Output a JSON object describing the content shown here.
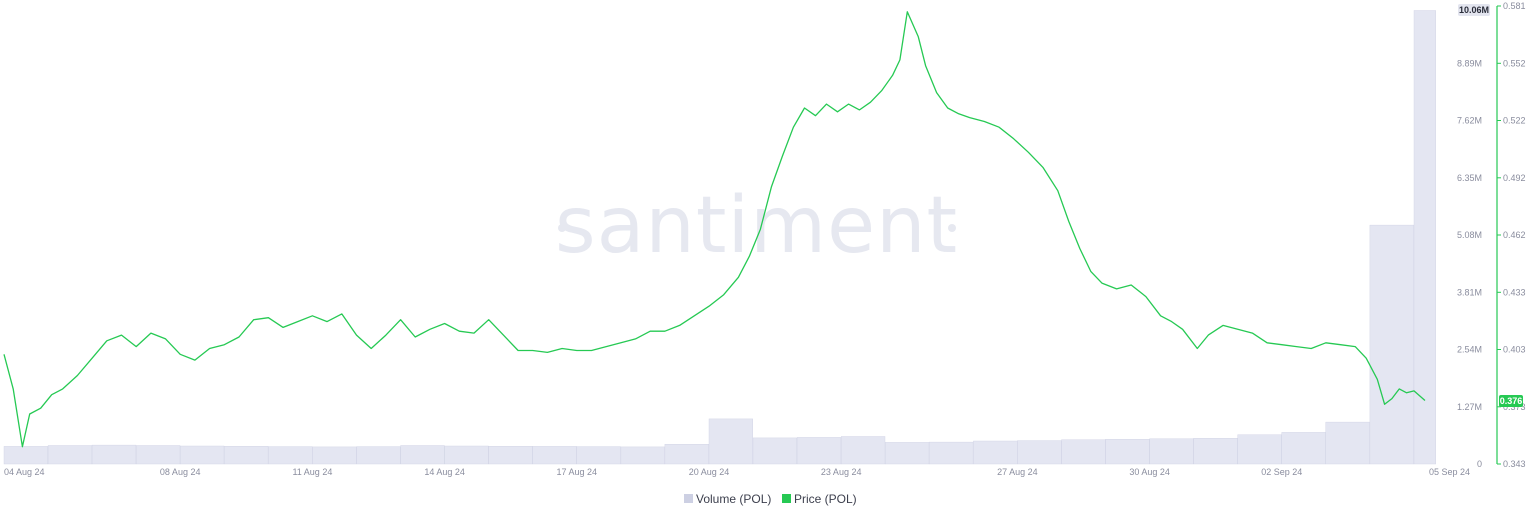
{
  "watermark": "santiment",
  "colors": {
    "price": "#26c953",
    "volume_fill": "#e4e6f2",
    "volume_stroke": "#cdd0e3",
    "axis_text": "#8a8d9e",
    "badge_price_bg": "#26c953",
    "badge_volume_bg": "#e3e5ef"
  },
  "chart_data": {
    "type": "line",
    "x_ticks": [
      "04 Aug 24",
      "08 Aug 24",
      "11 Aug 24",
      "14 Aug 24",
      "17 Aug 24",
      "20 Aug 24",
      "23 Aug 24",
      "27 Aug 24",
      "30 Aug 24",
      "02 Sep 24",
      "05 Sep 24"
    ],
    "x_range": [
      "2024-08-04",
      "2024-09-05"
    ],
    "y_left_ticks": [
      "0",
      "1.27M",
      "2.54M",
      "3.81M",
      "5.08M",
      "6.35M",
      "7.62M",
      "8.89M",
      "10.06M"
    ],
    "y_left_range": [
      0,
      10160000
    ],
    "y_right_ticks": [
      "0.343",
      "0.373",
      "0.403",
      "0.433",
      "0.462",
      "0.492",
      "0.522",
      "0.552",
      "0.581"
    ],
    "y_right_range": [
      0.343,
      0.581
    ],
    "legend": [
      "Volume (POL)",
      "Price (POL)"
    ],
    "legend_position": "bottom-center",
    "grid": false,
    "last_volume_label": "10.06M",
    "last_price_label": "0.376",
    "series": [
      {
        "name": "Volume (POL)",
        "type": "bar",
        "axis": "left",
        "points": [
          [
            "2024-08-04",
            390000
          ],
          [
            "2024-08-05",
            410000
          ],
          [
            "2024-08-06",
            420000
          ],
          [
            "2024-08-07",
            410000
          ],
          [
            "2024-08-08",
            400000
          ],
          [
            "2024-08-09",
            395000
          ],
          [
            "2024-08-10",
            385000
          ],
          [
            "2024-08-11",
            380000
          ],
          [
            "2024-08-12",
            385000
          ],
          [
            "2024-08-13",
            410000
          ],
          [
            "2024-08-14",
            400000
          ],
          [
            "2024-08-15",
            395000
          ],
          [
            "2024-08-16",
            390000
          ],
          [
            "2024-08-17",
            385000
          ],
          [
            "2024-08-18",
            380000
          ],
          [
            "2024-08-19",
            440000
          ],
          [
            "2024-08-20",
            1000000
          ],
          [
            "2024-08-21",
            580000
          ],
          [
            "2024-08-22",
            590000
          ],
          [
            "2024-08-23",
            610000
          ],
          [
            "2024-08-24",
            480000
          ],
          [
            "2024-08-25",
            485000
          ],
          [
            "2024-08-26",
            510000
          ],
          [
            "2024-08-27",
            520000
          ],
          [
            "2024-08-28",
            540000
          ],
          [
            "2024-08-29",
            550000
          ],
          [
            "2024-08-30",
            560000
          ],
          [
            "2024-08-31",
            570000
          ],
          [
            "2024-09-01",
            650000
          ],
          [
            "2024-09-02",
            700000
          ],
          [
            "2024-09-03",
            930000
          ],
          [
            "2024-09-04",
            5300000
          ],
          [
            "2024-09-05",
            10060000
          ]
        ]
      },
      {
        "name": "Price (POL)",
        "type": "line",
        "axis": "right",
        "points": [
          [
            "2024-08-04T00:00",
            0.4
          ],
          [
            "2024-08-04T05:00",
            0.382
          ],
          [
            "2024-08-04T10:00",
            0.352
          ],
          [
            "2024-08-04T14:00",
            0.369
          ],
          [
            "2024-08-04T20:00",
            0.372
          ],
          [
            "2024-08-05T02:00",
            0.379
          ],
          [
            "2024-08-05T08:00",
            0.382
          ],
          [
            "2024-08-05T16:00",
            0.389
          ],
          [
            "2024-08-06T00:00",
            0.398
          ],
          [
            "2024-08-06T08:00",
            0.407
          ],
          [
            "2024-08-06T16:00",
            0.41
          ],
          [
            "2024-08-07T00:00",
            0.404
          ],
          [
            "2024-08-07T08:00",
            0.411
          ],
          [
            "2024-08-07T16:00",
            0.408
          ],
          [
            "2024-08-08T00:00",
            0.4
          ],
          [
            "2024-08-08T08:00",
            0.397
          ],
          [
            "2024-08-08T16:00",
            0.403
          ],
          [
            "2024-08-09T00:00",
            0.405
          ],
          [
            "2024-08-09T08:00",
            0.409
          ],
          [
            "2024-08-09T16:00",
            0.418
          ],
          [
            "2024-08-10T00:00",
            0.419
          ],
          [
            "2024-08-10T08:00",
            0.414
          ],
          [
            "2024-08-10T16:00",
            0.417
          ],
          [
            "2024-08-11T00:00",
            0.42
          ],
          [
            "2024-08-11T08:00",
            0.417
          ],
          [
            "2024-08-11T16:00",
            0.421
          ],
          [
            "2024-08-12T00:00",
            0.41
          ],
          [
            "2024-08-12T08:00",
            0.403
          ],
          [
            "2024-08-12T16:00",
            0.41
          ],
          [
            "2024-08-13T00:00",
            0.418
          ],
          [
            "2024-08-13T08:00",
            0.409
          ],
          [
            "2024-08-13T16:00",
            0.413
          ],
          [
            "2024-08-14T00:00",
            0.416
          ],
          [
            "2024-08-14T08:00",
            0.412
          ],
          [
            "2024-08-14T16:00",
            0.411
          ],
          [
            "2024-08-15T00:00",
            0.418
          ],
          [
            "2024-08-15T08:00",
            0.41
          ],
          [
            "2024-08-15T16:00",
            0.402
          ],
          [
            "2024-08-16T00:00",
            0.402
          ],
          [
            "2024-08-16T08:00",
            0.401
          ],
          [
            "2024-08-16T16:00",
            0.403
          ],
          [
            "2024-08-17T00:00",
            0.402
          ],
          [
            "2024-08-17T08:00",
            0.402
          ],
          [
            "2024-08-17T16:00",
            0.404
          ],
          [
            "2024-08-18T00:00",
            0.406
          ],
          [
            "2024-08-18T08:00",
            0.408
          ],
          [
            "2024-08-18T16:00",
            0.412
          ],
          [
            "2024-08-19T00:00",
            0.412
          ],
          [
            "2024-08-19T08:00",
            0.415
          ],
          [
            "2024-08-19T16:00",
            0.42
          ],
          [
            "2024-08-20T00:00",
            0.425
          ],
          [
            "2024-08-20T08:00",
            0.431
          ],
          [
            "2024-08-20T16:00",
            0.44
          ],
          [
            "2024-08-20T22:00",
            0.451
          ],
          [
            "2024-08-21T04:00",
            0.465
          ],
          [
            "2024-08-21T10:00",
            0.487
          ],
          [
            "2024-08-21T16:00",
            0.503
          ],
          [
            "2024-08-21T22:00",
            0.518
          ],
          [
            "2024-08-22T04:00",
            0.528
          ],
          [
            "2024-08-22T10:00",
            0.524
          ],
          [
            "2024-08-22T16:00",
            0.53
          ],
          [
            "2024-08-22T22:00",
            0.526
          ],
          [
            "2024-08-23T04:00",
            0.53
          ],
          [
            "2024-08-23T10:00",
            0.527
          ],
          [
            "2024-08-23T16:00",
            0.531
          ],
          [
            "2024-08-23T22:00",
            0.537
          ],
          [
            "2024-08-24T04:00",
            0.545
          ],
          [
            "2024-08-24T08:00",
            0.553
          ],
          [
            "2024-08-24T12:00",
            0.578
          ],
          [
            "2024-08-24T18:00",
            0.565
          ],
          [
            "2024-08-24T22:00",
            0.55
          ],
          [
            "2024-08-25T04:00",
            0.536
          ],
          [
            "2024-08-25T10:00",
            0.528
          ],
          [
            "2024-08-25T16:00",
            0.525
          ],
          [
            "2024-08-25T22:00",
            0.523
          ],
          [
            "2024-08-26T06:00",
            0.521
          ],
          [
            "2024-08-26T14:00",
            0.518
          ],
          [
            "2024-08-26T22:00",
            0.512
          ],
          [
            "2024-08-27T06:00",
            0.505
          ],
          [
            "2024-08-27T14:00",
            0.497
          ],
          [
            "2024-08-27T22:00",
            0.485
          ],
          [
            "2024-08-28T04:00",
            0.469
          ],
          [
            "2024-08-28T10:00",
            0.455
          ],
          [
            "2024-08-28T16:00",
            0.443
          ],
          [
            "2024-08-28T22:00",
            0.437
          ],
          [
            "2024-08-29T06:00",
            0.434
          ],
          [
            "2024-08-29T14:00",
            0.436
          ],
          [
            "2024-08-29T22:00",
            0.43
          ],
          [
            "2024-08-30T06:00",
            0.42
          ],
          [
            "2024-08-30T12:00",
            0.417
          ],
          [
            "2024-08-30T18:00",
            0.413
          ],
          [
            "2024-08-31T02:00",
            0.403
          ],
          [
            "2024-08-31T08:00",
            0.41
          ],
          [
            "2024-08-31T16:00",
            0.415
          ],
          [
            "2024-09-01T00:00",
            0.413
          ],
          [
            "2024-09-01T08:00",
            0.411
          ],
          [
            "2024-09-01T16:00",
            0.406
          ],
          [
            "2024-09-02T00:00",
            0.405
          ],
          [
            "2024-09-02T08:00",
            0.404
          ],
          [
            "2024-09-02T16:00",
            0.403
          ],
          [
            "2024-09-03T00:00",
            0.406
          ],
          [
            "2024-09-03T08:00",
            0.405
          ],
          [
            "2024-09-03T16:00",
            0.404
          ],
          [
            "2024-09-03T22:00",
            0.398
          ],
          [
            "2024-09-04T04:00",
            0.387
          ],
          [
            "2024-09-04T08:00",
            0.374
          ],
          [
            "2024-09-04T12:00",
            0.377
          ],
          [
            "2024-09-04T16:00",
            0.382
          ],
          [
            "2024-09-04T20:00",
            0.38
          ],
          [
            "2024-09-05T00:00",
            0.381
          ],
          [
            "2024-09-05T06:00",
            0.376
          ]
        ]
      }
    ]
  }
}
